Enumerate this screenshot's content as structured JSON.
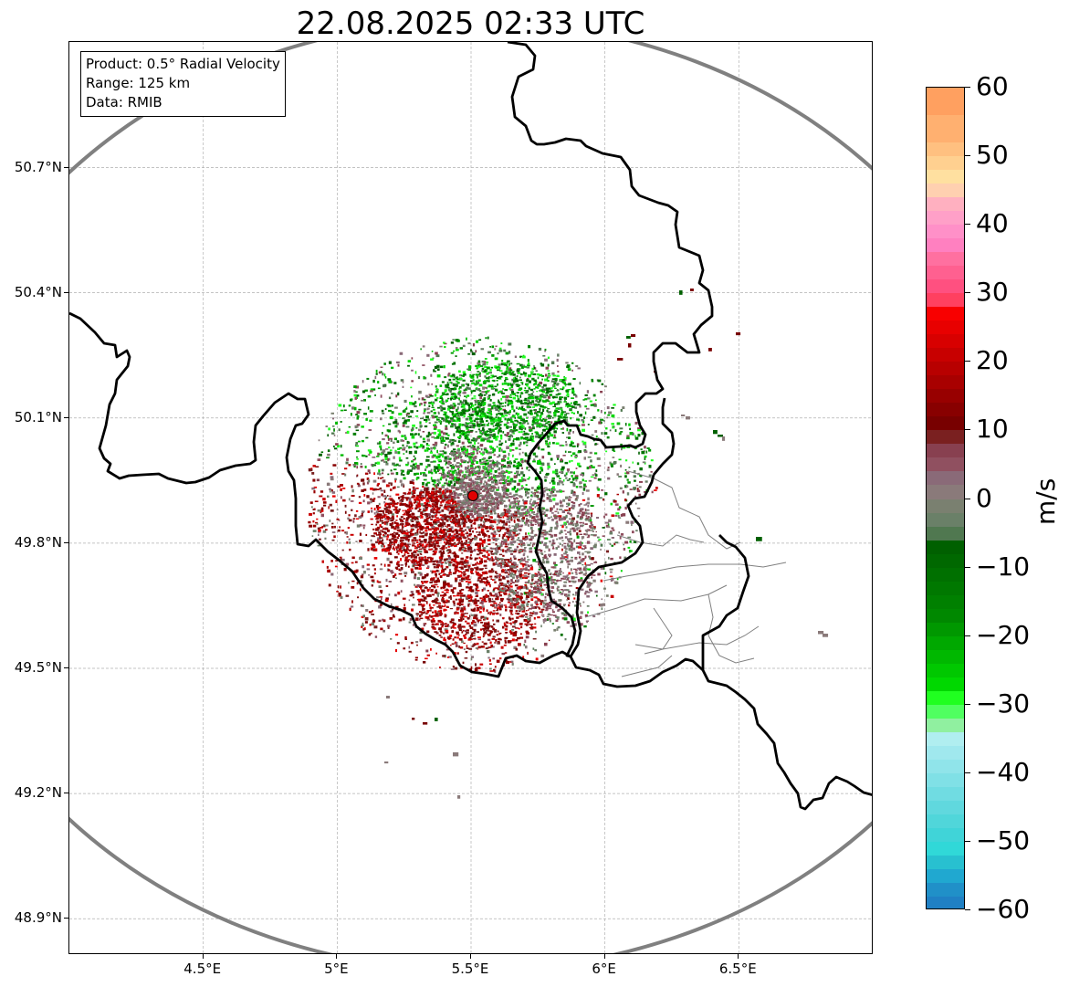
{
  "title": "22.08.2025 02:33 UTC",
  "info_box": {
    "product": "Product: 0.5° Radial Velocity",
    "range": "Range: 125 km",
    "data": "Data: RMIB"
  },
  "map": {
    "lon_range": [
      4.0,
      7.0
    ],
    "lat_range": [
      48.8,
      51.0
    ],
    "x_ticks": [
      {
        "lon": 4.5,
        "label": "4.5°E"
      },
      {
        "lon": 5.0,
        "label": "5°E"
      },
      {
        "lon": 5.5,
        "label": "5.5°E"
      },
      {
        "lon": 6.0,
        "label": "6°E"
      },
      {
        "lon": 6.5,
        "label": "6.5°E"
      }
    ],
    "y_ticks": [
      {
        "lat": 50.7,
        "label": "50.7°N"
      },
      {
        "lat": 50.4,
        "label": "50.4°N"
      },
      {
        "lat": 50.1,
        "label": "50.1°N"
      },
      {
        "lat": 49.8,
        "label": "49.8°N"
      },
      {
        "lat": 49.5,
        "label": "49.5°N"
      },
      {
        "lat": 49.2,
        "label": "49.2°N"
      },
      {
        "lat": 48.9,
        "label": "48.9°N"
      }
    ],
    "radar_site": {
      "lon": 5.505,
      "lat": 49.914,
      "color": "#e00000"
    },
    "range_ring_km": 125,
    "range_ring_color": "#808080",
    "grid_color": "#b0b0b0",
    "border_color": "#000000",
    "region_border_color": "#808080"
  },
  "colorbar": {
    "unit": "m/s",
    "min": -60,
    "max": 60,
    "ticks": [
      {
        "value": 60,
        "label": "60"
      },
      {
        "value": 50,
        "label": "50"
      },
      {
        "value": 40,
        "label": "40"
      },
      {
        "value": 30,
        "label": "30"
      },
      {
        "value": 20,
        "label": "20"
      },
      {
        "value": 10,
        "label": "10"
      },
      {
        "value": 0,
        "label": "0"
      },
      {
        "value": -10,
        "label": "−10"
      },
      {
        "value": -20,
        "label": "−20"
      },
      {
        "value": -30,
        "label": "−30"
      },
      {
        "value": -40,
        "label": "−40"
      },
      {
        "value": -50,
        "label": "−50"
      },
      {
        "value": -60,
        "label": "−60"
      }
    ],
    "segments": [
      {
        "from": 56,
        "to": 60,
        "color": "#ffa060"
      },
      {
        "from": 52,
        "to": 56,
        "color": "#ffb070"
      },
      {
        "from": 50,
        "to": 52,
        "color": "#ffc080"
      },
      {
        "from": 48,
        "to": 50,
        "color": "#ffd090"
      },
      {
        "from": 46,
        "to": 48,
        "color": "#ffe0a0"
      },
      {
        "from": 44,
        "to": 46,
        "color": "#ffd0b0"
      },
      {
        "from": 42,
        "to": 44,
        "color": "#ffb0c0"
      },
      {
        "from": 40,
        "to": 42,
        "color": "#ffa0c8"
      },
      {
        "from": 38,
        "to": 40,
        "color": "#ff90c8"
      },
      {
        "from": 36,
        "to": 38,
        "color": "#ff80c0"
      },
      {
        "from": 34,
        "to": 36,
        "color": "#ff70a0"
      },
      {
        "from": 32,
        "to": 34,
        "color": "#ff6090"
      },
      {
        "from": 30,
        "to": 32,
        "color": "#ff5080"
      },
      {
        "from": 28,
        "to": 30,
        "color": "#ff4060"
      },
      {
        "from": 26,
        "to": 28,
        "color": "#f80000"
      },
      {
        "from": 24,
        "to": 26,
        "color": "#e80000"
      },
      {
        "from": 22,
        "to": 24,
        "color": "#d80000"
      },
      {
        "from": 20,
        "to": 22,
        "color": "#c80000"
      },
      {
        "from": 18,
        "to": 20,
        "color": "#b80000"
      },
      {
        "from": 16,
        "to": 18,
        "color": "#a80000"
      },
      {
        "from": 14,
        "to": 16,
        "color": "#980000"
      },
      {
        "from": 12,
        "to": 14,
        "color": "#880000"
      },
      {
        "from": 10,
        "to": 12,
        "color": "#780000"
      },
      {
        "from": 8,
        "to": 10,
        "color": "#7a2020"
      },
      {
        "from": 6,
        "to": 8,
        "color": "#884050"
      },
      {
        "from": 4,
        "to": 6,
        "color": "#905060"
      },
      {
        "from": 2,
        "to": 4,
        "color": "#8a6a78"
      },
      {
        "from": 0,
        "to": 2,
        "color": "#8a7a7a"
      },
      {
        "from": -2,
        "to": 0,
        "color": "#7a8070"
      },
      {
        "from": -4,
        "to": -2,
        "color": "#6a8068"
      },
      {
        "from": -6,
        "to": -4,
        "color": "#507850"
      },
      {
        "from": -8,
        "to": -6,
        "color": "#006000"
      },
      {
        "from": -10,
        "to": -8,
        "color": "#006800"
      },
      {
        "from": -12,
        "to": -10,
        "color": "#007000"
      },
      {
        "from": -14,
        "to": -12,
        "color": "#007800"
      },
      {
        "from": -16,
        "to": -14,
        "color": "#008000"
      },
      {
        "from": -18,
        "to": -16,
        "color": "#008800"
      },
      {
        "from": -20,
        "to": -18,
        "color": "#009800"
      },
      {
        "from": -22,
        "to": -20,
        "color": "#00a800"
      },
      {
        "from": -24,
        "to": -22,
        "color": "#00b800"
      },
      {
        "from": -26,
        "to": -24,
        "color": "#00c800"
      },
      {
        "from": -28,
        "to": -26,
        "color": "#00d800"
      },
      {
        "from": -30,
        "to": -28,
        "color": "#20ff20"
      },
      {
        "from": -32,
        "to": -30,
        "color": "#50ff60"
      },
      {
        "from": -34,
        "to": -32,
        "color": "#90f0a0"
      },
      {
        "from": -36,
        "to": -34,
        "color": "#b0eef0"
      },
      {
        "from": -38,
        "to": -36,
        "color": "#a0e8ee"
      },
      {
        "from": -40,
        "to": -38,
        "color": "#90e4ea"
      },
      {
        "from": -42,
        "to": -40,
        "color": "#80e0e6"
      },
      {
        "from": -44,
        "to": -42,
        "color": "#70dce2"
      },
      {
        "from": -46,
        "to": -44,
        "color": "#60d8de"
      },
      {
        "from": -48,
        "to": -46,
        "color": "#50d6da"
      },
      {
        "from": -50,
        "to": -48,
        "color": "#40d4d8"
      },
      {
        "from": -52,
        "to": -50,
        "color": "#30d8d8"
      },
      {
        "from": -54,
        "to": -52,
        "color": "#28c0d0"
      },
      {
        "from": -56,
        "to": -54,
        "color": "#20a8d0"
      },
      {
        "from": -58,
        "to": -56,
        "color": "#2090c8"
      },
      {
        "from": -60,
        "to": -58,
        "color": "#2080c4"
      }
    ]
  }
}
